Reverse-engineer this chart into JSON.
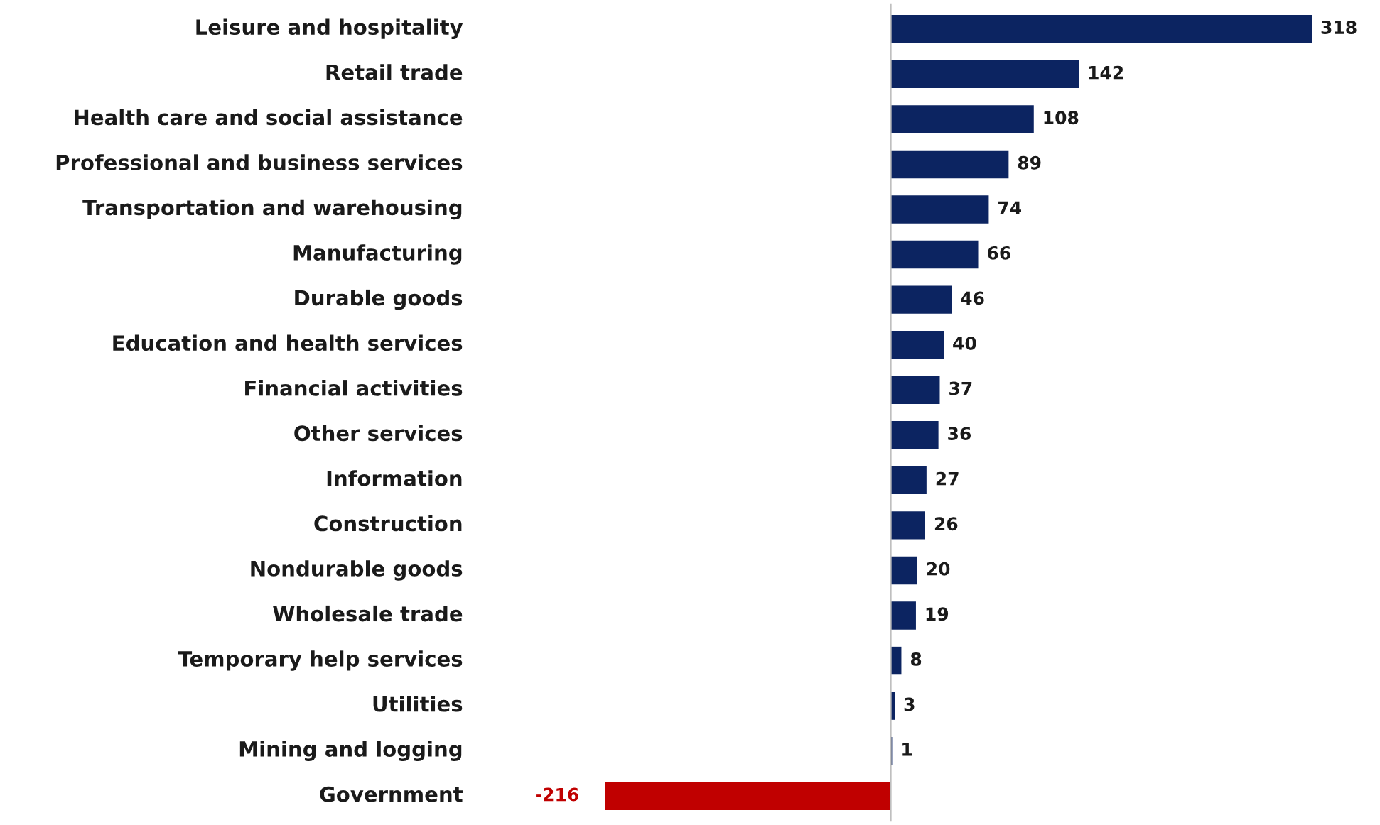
{
  "chart_data": {
    "type": "bar",
    "orientation": "horizontal",
    "data_labels": true,
    "categories": [
      "Leisure and hospitality",
      "Retail trade",
      "Health care and social assistance",
      "Professional and business services",
      "Transportation and warehousing",
      "Manufacturing",
      "Durable goods",
      "Education and health services",
      "Financial activities",
      "Other services",
      "Information",
      "Construction",
      "Nondurable goods",
      "Wholesale trade",
      "Temporary help services",
      "Utilities",
      "Mining and logging",
      "Government"
    ],
    "values": [
      318,
      142,
      108,
      89,
      74,
      66,
      46,
      40,
      37,
      36,
      27,
      26,
      20,
      19,
      8,
      3,
      1,
      -216
    ],
    "colors": [
      "#0c2461",
      "#0c2461",
      "#0c2461",
      "#0c2461",
      "#0c2461",
      "#0c2461",
      "#0c2461",
      "#0c2461",
      "#0c2461",
      "#0c2461",
      "#0c2461",
      "#0c2461",
      "#0c2461",
      "#0c2461",
      "#0c2461",
      "#0c2461",
      "#0c2461",
      "#c00000"
    ]
  }
}
